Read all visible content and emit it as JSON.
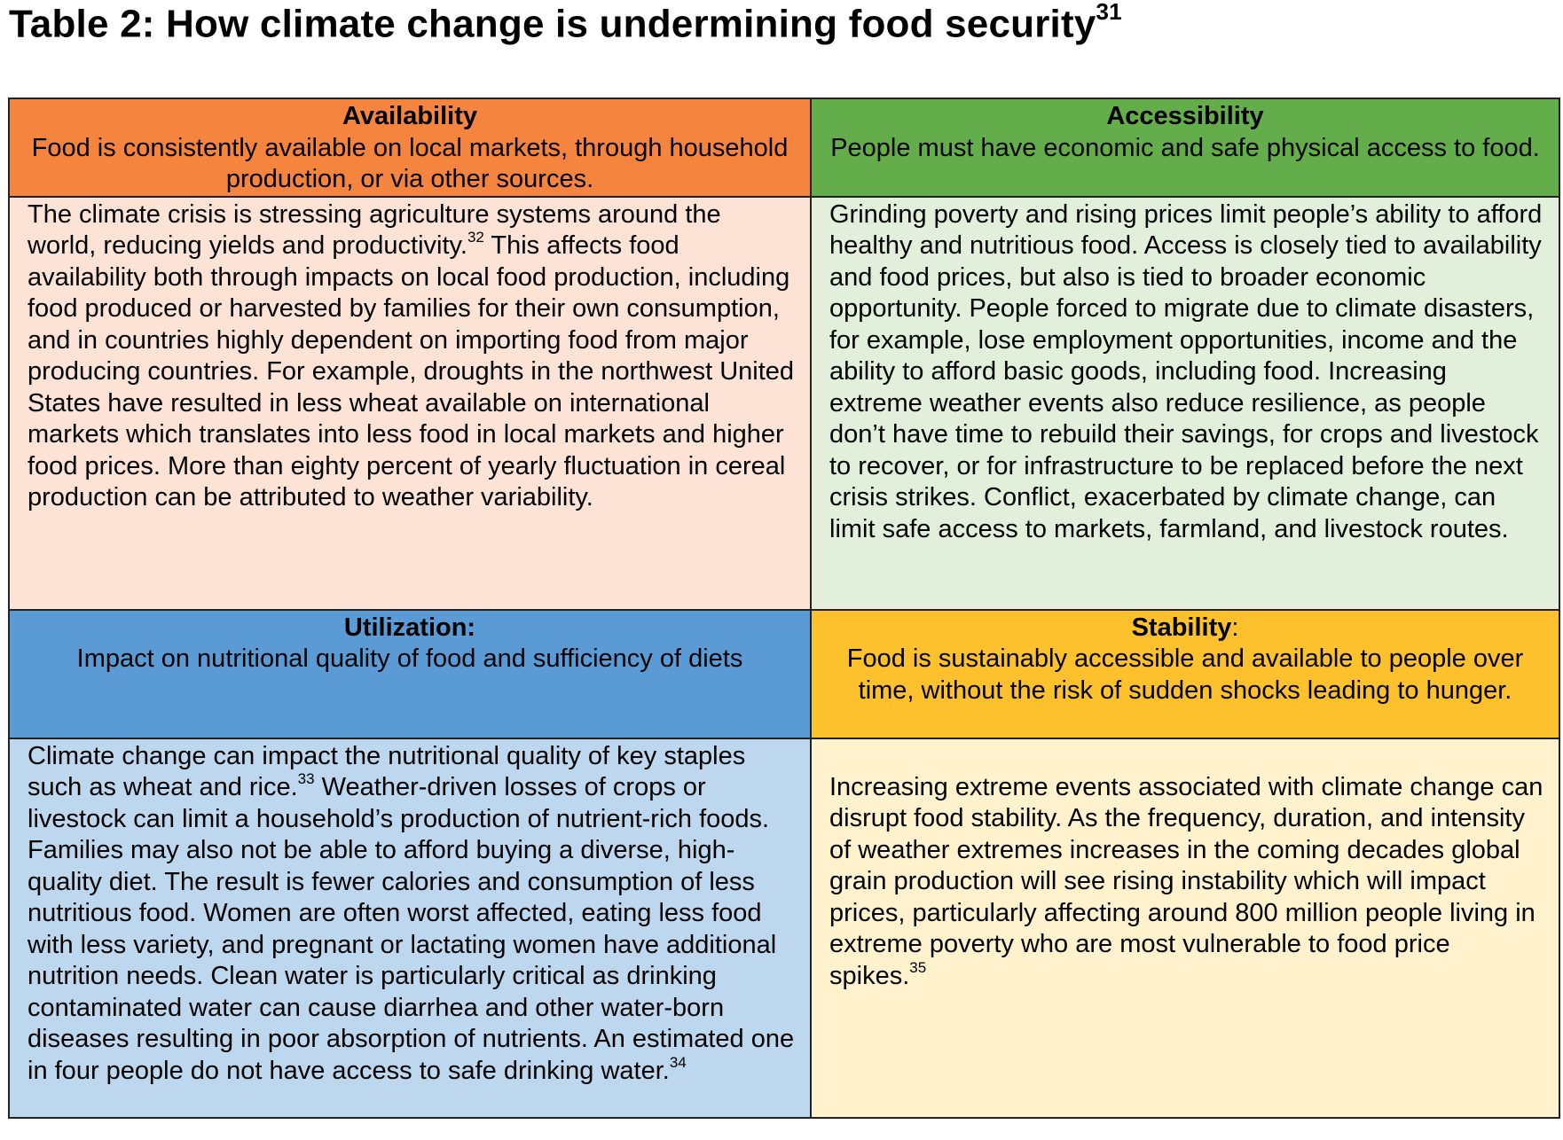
{
  "title": {
    "text": "Table 2: How climate change is undermining food security",
    "ref": "31"
  },
  "colors": {
    "availability_header": "#f5843f",
    "availability_body": "#fce3d6",
    "accessibility_header": "#63ae4a",
    "accessibility_body": "#e2efda",
    "utilization_header": "#5b9bd5",
    "utilization_body": "#bdd7ee",
    "stability_header": "#fec12e",
    "stability_body": "#fff2cc"
  },
  "availability": {
    "title": "Availability",
    "desc": "Food is consistently available on local markets, through household production, or via other sources.",
    "body_a": "The climate crisis is stressing agriculture systems around the world, reducing yields and productivity.",
    "ref": "32",
    "body_b": " This affects food availability both through impacts on local food production, including food produced or harvested by families for their own consumption, and in countries highly dependent on importing food from major producing countries. For example, droughts in the northwest United States have resulted in less wheat available on international markets which translates into less food in local markets and higher food prices. More than eighty percent of yearly fluctuation in cereal production can be attributed to weather variability."
  },
  "accessibility": {
    "title": "Accessibility",
    "desc": "People must have economic and safe physical access to food.",
    "body": "Grinding poverty and rising prices limit people’s ability to afford healthy and nutritious food. Access is closely tied to availability and food prices, but also is tied to broader economic opportunity. People forced to migrate due to climate disasters, for example, lose employment opportunities, income and the ability to afford basic goods, including food. Increasing extreme weather events also reduce resilience, as people don’t have time to rebuild their savings, for crops and livestock to recover, or for infrastructure to be replaced before the next crisis strikes. Conflict, exacerbated by climate change, can limit safe access to markets, farmland, and livestock routes."
  },
  "utilization": {
    "title": "Utilization:",
    "desc": "Impact on nutritional quality of food and sufficiency of diets",
    "body_a": "Climate change can impact the nutritional quality of key staples such as wheat and rice.",
    "ref_a": "33",
    "body_b": " Weather-driven losses of crops or livestock can limit a household’s production of nutrient-rich foods.  Families may also not be able to afford buying a diverse, high-quality diet. The result is fewer calories and consumption of less nutritious food. Women are often worst affected, eating less food with less variety, and pregnant or lactating women have additional nutrition needs. Clean water is particularly critical as drinking contaminated water can cause diarrhea and other water-born diseases resulting in poor absorption of nutrients. An estimated one in four people do not have access to safe drinking water.",
    "ref_b": "34"
  },
  "stability": {
    "title": "Stability",
    "title_colon": ":",
    "desc": "Food is sustainably accessible and available to people over time, without the risk of sudden shocks leading to hunger.",
    "body": "Increasing extreme events associated with climate change can disrupt food stability. As the frequency, duration, and intensity of weather extremes increases in the coming decades global grain production will see rising instability which will impact prices, particularly affecting around 800 million people living in extreme poverty who are most vulnerable to food price spikes.",
    "ref": "35"
  }
}
